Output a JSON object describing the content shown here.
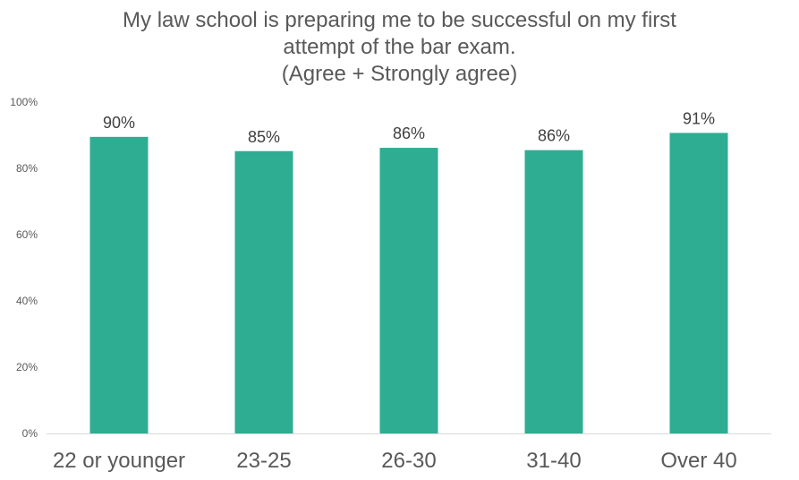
{
  "chart_data": {
    "type": "bar",
    "title_lines": [
      "My law school is preparing me to be successful on my first",
      "attempt of the bar exam.",
      "(Agree + Strongly agree)"
    ],
    "categories": [
      "22 or younger",
      "23-25",
      "26-30",
      "31-40",
      "Over 40"
    ],
    "values": [
      89.5,
      85.2,
      86.2,
      85.5,
      90.7
    ],
    "data_labels": [
      "90%",
      "85%",
      "86%",
      "86%",
      "91%"
    ],
    "ylim": [
      0,
      100
    ],
    "yticks": [
      0,
      20,
      40,
      60,
      80,
      100
    ],
    "ytick_labels": [
      "0%",
      "20%",
      "40%",
      "60%",
      "80%",
      "100%"
    ],
    "grid": false,
    "legend": "none",
    "bar_color": "#2EAD92"
  }
}
